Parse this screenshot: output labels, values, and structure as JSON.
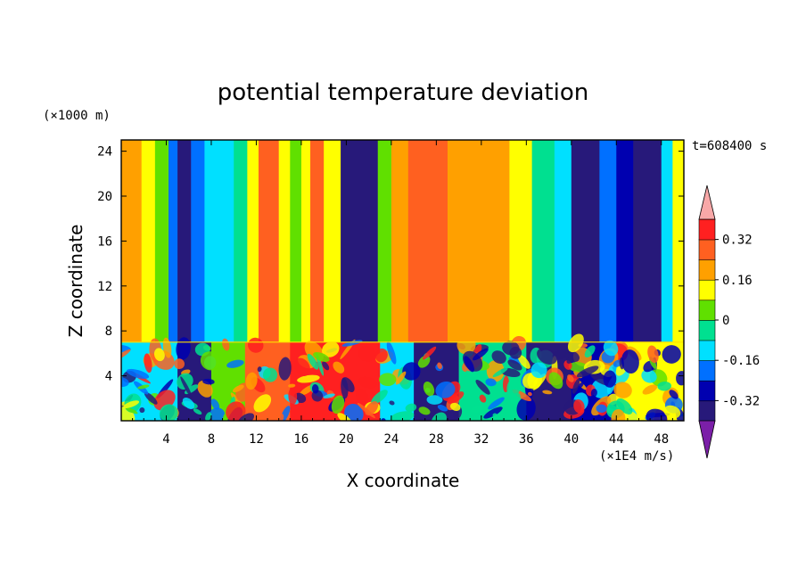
{
  "chart_data": {
    "type": "heatmap",
    "title": "potential temperature deviation",
    "xlabel": "X coordinate",
    "ylabel": "Z coordinate",
    "x_unit": "(×1E4 m/s)",
    "y_unit": "(×1000 m)",
    "time_label": "t=608400 s",
    "xlim": [
      0,
      50
    ],
    "ylim": [
      0,
      25
    ],
    "x_ticks": [
      4,
      8,
      12,
      16,
      20,
      24,
      28,
      32,
      36,
      40,
      44,
      48
    ],
    "y_ticks": [
      4,
      8,
      12,
      16,
      20,
      24
    ],
    "colorbar": {
      "levels": [
        -0.4,
        -0.32,
        -0.24,
        -0.16,
        -0.08,
        0,
        0.08,
        0.16,
        0.24,
        0.32,
        0.4
      ],
      "tick_labels": [
        "0.32",
        "0.16",
        "0",
        "-0.16",
        "-0.32"
      ],
      "tick_values": [
        0.32,
        0.16,
        0,
        -0.16,
        -0.32
      ],
      "colors": [
        "#7b1fa8",
        "#27197a",
        "#0000b0",
        "#0070ff",
        "#00e0ff",
        "#00e090",
        "#60e000",
        "#ffff00",
        "#ffa000",
        "#ff6020",
        "#ff2020",
        "#f8a8a8"
      ],
      "extend": "both"
    },
    "upper_layer_columns": [
      {
        "x_start": 0.0,
        "x_end": 1.8,
        "value": 0.2
      },
      {
        "x_start": 1.8,
        "x_end": 3.0,
        "value": 0.12
      },
      {
        "x_start": 3.0,
        "x_end": 4.2,
        "value": 0.0
      },
      {
        "x_start": 4.2,
        "x_end": 5.0,
        "value": -0.2
      },
      {
        "x_start": 5.0,
        "x_end": 6.2,
        "value": -0.36
      },
      {
        "x_start": 6.2,
        "x_end": 7.4,
        "value": -0.2
      },
      {
        "x_start": 7.4,
        "x_end": 10.0,
        "value": -0.12
      },
      {
        "x_start": 10.0,
        "x_end": 11.2,
        "value": -0.04
      },
      {
        "x_start": 11.2,
        "x_end": 12.2,
        "value": 0.1
      },
      {
        "x_start": 12.2,
        "x_end": 14.0,
        "value": 0.3
      },
      {
        "x_start": 14.0,
        "x_end": 15.0,
        "value": 0.12
      },
      {
        "x_start": 15.0,
        "x_end": 16.0,
        "value": 0.0
      },
      {
        "x_start": 16.0,
        "x_end": 16.8,
        "value": 0.1
      },
      {
        "x_start": 16.8,
        "x_end": 18.0,
        "value": 0.28
      },
      {
        "x_start": 18.0,
        "x_end": 19.5,
        "value": 0.12
      },
      {
        "x_start": 19.5,
        "x_end": 22.8,
        "value": -0.38
      },
      {
        "x_start": 22.8,
        "x_end": 24.0,
        "value": 0.04
      },
      {
        "x_start": 24.0,
        "x_end": 25.5,
        "value": 0.2
      },
      {
        "x_start": 25.5,
        "x_end": 29.0,
        "value": 0.3
      },
      {
        "x_start": 29.0,
        "x_end": 34.5,
        "value": 0.2
      },
      {
        "x_start": 34.5,
        "x_end": 36.5,
        "value": 0.1
      },
      {
        "x_start": 36.5,
        "x_end": 38.5,
        "value": -0.04
      },
      {
        "x_start": 38.5,
        "x_end": 40.0,
        "value": -0.14
      },
      {
        "x_start": 40.0,
        "x_end": 42.5,
        "value": -0.34
      },
      {
        "x_start": 42.5,
        "x_end": 44.0,
        "value": -0.2
      },
      {
        "x_start": 44.0,
        "x_end": 45.5,
        "value": -0.28
      },
      {
        "x_start": 45.5,
        "x_end": 48.0,
        "value": -0.36
      },
      {
        "x_start": 48.0,
        "x_end": 49.0,
        "value": -0.12
      },
      {
        "x_start": 49.0,
        "x_end": 50.0,
        "value": 0.08
      }
    ],
    "lower_layer_top": 7,
    "lower_layer_segments": [
      {
        "x_start": 0.0,
        "x_end": 5.0,
        "value": -0.1
      },
      {
        "x_start": 5.0,
        "x_end": 8.0,
        "value": -0.38
      },
      {
        "x_start": 8.0,
        "x_end": 11.0,
        "value": 0.05
      },
      {
        "x_start": 11.0,
        "x_end": 15.0,
        "value": 0.25
      },
      {
        "x_start": 15.0,
        "x_end": 19.0,
        "value": 0.38
      },
      {
        "x_start": 19.0,
        "x_end": 23.0,
        "value": 0.38
      },
      {
        "x_start": 23.0,
        "x_end": 26.0,
        "value": -0.12
      },
      {
        "x_start": 26.0,
        "x_end": 30.0,
        "value": -0.38
      },
      {
        "x_start": 30.0,
        "x_end": 36.0,
        "value": -0.05
      },
      {
        "x_start": 36.0,
        "x_end": 40.0,
        "value": -0.38
      },
      {
        "x_start": 40.0,
        "x_end": 44.0,
        "value": -0.3
      },
      {
        "x_start": 44.0,
        "x_end": 50.0,
        "value": 0.15
      }
    ]
  }
}
